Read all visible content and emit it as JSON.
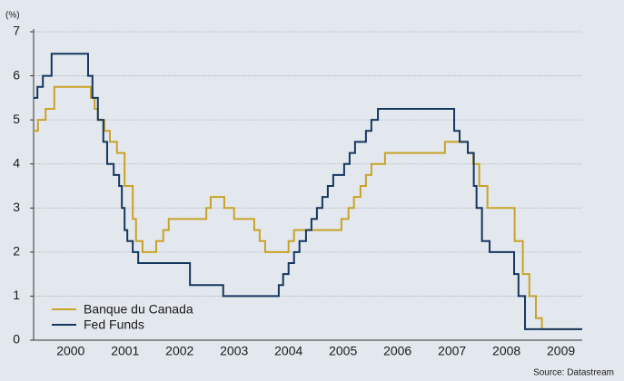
{
  "chart_data": {
    "type": "line",
    "step": true,
    "y_unit_label": "(%)",
    "source": "Source: Datastream",
    "xlim": [
      1999.82,
      2009.89
    ],
    "ylim": [
      0,
      7
    ],
    "yticks": [
      0,
      1,
      2,
      3,
      4,
      5,
      6,
      7
    ],
    "xticks": [
      {
        "value": 2000.5,
        "label": "2000"
      },
      {
        "value": 2001.5,
        "label": "2001"
      },
      {
        "value": 2002.5,
        "label": "2002"
      },
      {
        "value": 2003.5,
        "label": "2003"
      },
      {
        "value": 2004.5,
        "label": "2004"
      },
      {
        "value": 2005.5,
        "label": "2005"
      },
      {
        "value": 2006.5,
        "label": "2006"
      },
      {
        "value": 2007.5,
        "label": "2007"
      },
      {
        "value": 2008.5,
        "label": "2008"
      },
      {
        "value": 2009.5,
        "label": "2009"
      }
    ],
    "grid": true,
    "legend": "lower-left",
    "series": [
      {
        "name": "Banque du Canada",
        "color": "#c9a227",
        "x": [
          1999.82,
          1999.9,
          2000.04,
          2000.2,
          2000.87,
          2000.94,
          2001.0,
          2001.12,
          2001.22,
          2001.35,
          2001.49,
          2001.64,
          2001.7,
          2001.82,
          2002.07,
          2002.2,
          2002.3,
          2002.99,
          2003.07,
          2003.32,
          2003.5,
          2003.87,
          2003.97,
          2004.07,
          2004.5,
          2004.6,
          2005.47,
          2005.6,
          2005.7,
          2005.82,
          2005.92,
          2006.02,
          2006.27,
          2007.37,
          2007.79,
          2007.89,
          2008.0,
          2008.15,
          2008.65,
          2008.8,
          2008.92,
          2009.04,
          2009.15,
          2009.89
        ],
        "values": [
          4.75,
          5,
          5.25,
          5.75,
          5.5,
          5.25,
          5,
          4.75,
          4.5,
          4.25,
          3.5,
          2.75,
          2.25,
          2,
          2.25,
          2.5,
          2.75,
          3,
          3.25,
          3,
          2.75,
          2.5,
          2.25,
          2,
          2.25,
          2.5,
          2.75,
          3,
          3.25,
          3.5,
          3.75,
          4,
          4.25,
          4.5,
          4.25,
          4,
          3.5,
          3,
          2.25,
          1.5,
          1,
          0.5,
          0.25,
          0.25
        ]
      },
      {
        "name": "Fed Funds",
        "color": "#15365e",
        "x": [
          1999.82,
          1999.89,
          1999.99,
          2000.15,
          2000.82,
          2000.9,
          2001.0,
          2001.1,
          2001.17,
          2001.29,
          2001.39,
          2001.44,
          2001.49,
          2001.54,
          2001.64,
          2001.74,
          2002.69,
          2003.3,
          2004.32,
          2004.4,
          2004.5,
          2004.6,
          2004.7,
          2004.82,
          2004.92,
          2005.02,
          2005.12,
          2005.22,
          2005.32,
          2005.52,
          2005.62,
          2005.72,
          2005.92,
          2006.02,
          2006.14,
          2007.54,
          2007.64,
          2007.79,
          2007.9,
          2007.95,
          2008.05,
          2008.19,
          2008.64,
          2008.72,
          2008.84,
          2009.89
        ],
        "values": [
          5.5,
          5.75,
          6,
          6.5,
          6,
          5.5,
          5,
          4.5,
          4,
          3.75,
          3.5,
          3,
          2.5,
          2.25,
          2,
          1.75,
          1.25,
          1,
          1.25,
          1.5,
          1.75,
          2,
          2.25,
          2.5,
          2.75,
          3,
          3.25,
          3.5,
          3.75,
          4,
          4.25,
          4.5,
          4.75,
          5,
          5.25,
          4.75,
          4.5,
          4.25,
          3.5,
          3,
          2.25,
          2,
          1.5,
          1,
          0.25,
          0.25
        ]
      }
    ]
  }
}
